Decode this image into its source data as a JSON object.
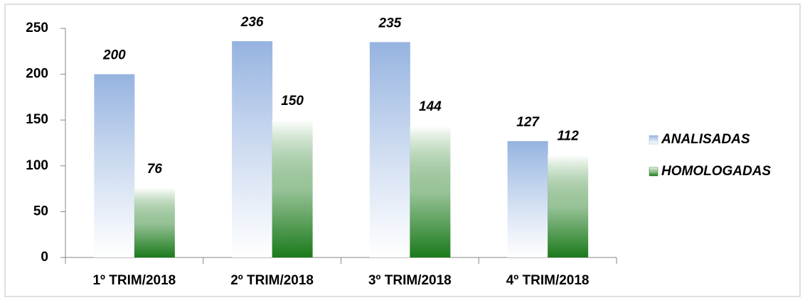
{
  "chart_data": {
    "type": "bar",
    "categories": [
      "1º TRIM/2018",
      "2º TRIM/2018",
      "3º TRIM/2018",
      "4º TRIM/2018"
    ],
    "series": [
      {
        "name": "ANALISADAS",
        "color": "#95b3e0",
        "values": [
          200,
          236,
          235,
          127
        ]
      },
      {
        "name": "HOMOLOGADAS",
        "color": "#1b7a1b",
        "values": [
          76,
          150,
          144,
          112
        ]
      }
    ],
    "ylim": [
      0,
      250
    ],
    "yticks": [
      0,
      50,
      100,
      150,
      200,
      250
    ],
    "legend": "right"
  }
}
